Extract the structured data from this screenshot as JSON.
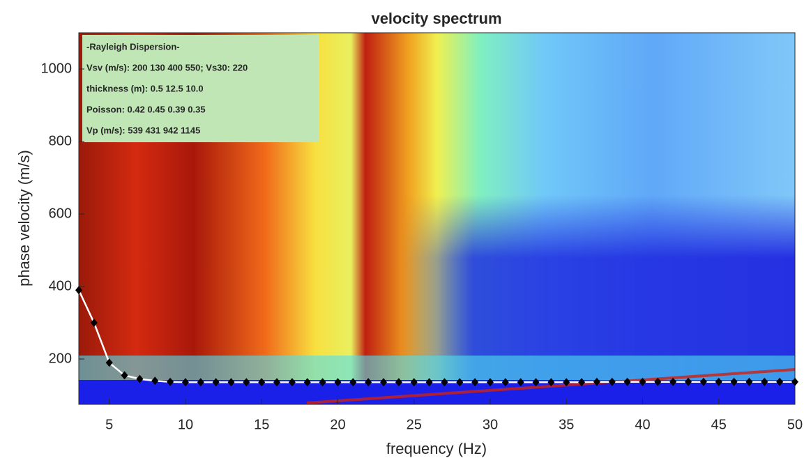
{
  "chart_data": {
    "type": "line",
    "title": "velocity spectrum",
    "x_label": "frequency (Hz)",
    "y_label": "phase velocity (m/s)",
    "annotations": [
      "-Rayleigh Dispersion-",
      "Vsv (m/s): 200  130  400  550; Vs30: 220",
      "thickness (m): 0.5  12.5  10.0",
      "Poisson: 0.42  0.45  0.39  0.35",
      "Vp (m/s): 539  431  942 1145"
    ],
    "x": [
      3,
      4,
      5,
      6,
      7,
      8,
      9,
      10,
      11,
      12,
      13,
      14,
      15,
      16,
      17,
      18,
      19,
      20,
      21,
      22,
      23,
      24,
      25,
      26,
      27,
      28,
      29,
      30,
      31,
      32,
      33,
      34,
      35,
      36,
      37,
      38,
      39,
      40,
      41,
      42,
      43,
      44,
      45,
      46,
      47,
      48,
      49,
      50
    ],
    "series": [
      {
        "color": "#000000",
        "values": [
          390,
          300,
          190,
          155,
          145,
          140,
          137,
          136,
          136,
          136,
          136,
          136,
          136,
          136,
          136,
          136,
          136,
          136,
          136,
          136,
          136,
          136,
          136,
          136,
          136,
          136,
          136,
          136,
          136,
          136,
          136,
          136,
          136,
          136,
          137,
          137,
          137,
          137,
          137,
          137,
          137,
          137,
          137,
          137,
          137,
          137,
          137,
          137
        ]
      }
    ],
    "xlim": [
      3,
      50
    ],
    "ylim": [
      75,
      1100
    ],
    "xticks": [
      5,
      10,
      15,
      20,
      25,
      30,
      35,
      40,
      45,
      50
    ],
    "yticks": [
      200,
      400,
      600,
      800,
      1000
    ],
    "grid": false
  }
}
